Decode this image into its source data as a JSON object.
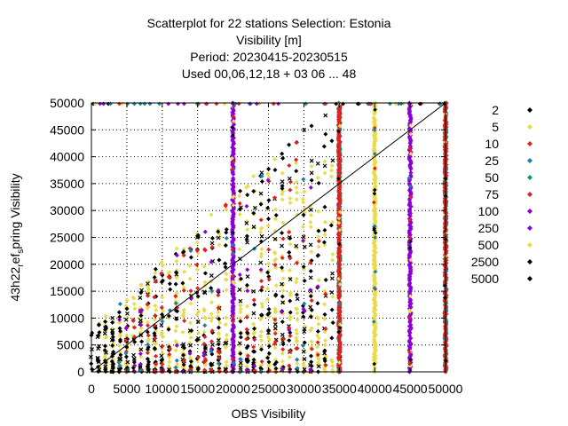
{
  "chart_data": {
    "type": "scatter",
    "title_lines": [
      "Scatterplot for   22 stations Selection: Estonia",
      "Visibility [m]",
      "Period: 20230415-20230515",
      "Used  00,06,12,18  + 03 06 ... 48"
    ],
    "xlabel": "OBS Visibility",
    "ylabel": "43h22 ref spring Visibility",
    "ylabel_parts": {
      "prefix": "43h22",
      "sub1": "r",
      "mid": "ef",
      "sub2": "s",
      "suffix": "pring Visibility"
    },
    "xlim": [
      0,
      50000
    ],
    "ylim": [
      0,
      50000
    ],
    "xticks": [
      0,
      5000,
      10000,
      15000,
      20000,
      25000,
      30000,
      35000,
      40000,
      45000,
      50000
    ],
    "yticks": [
      0,
      5000,
      10000,
      15000,
      20000,
      25000,
      30000,
      35000,
      40000,
      45000,
      50000
    ],
    "grid": true,
    "diagonal": true,
    "legend_position": "right",
    "series": [
      {
        "name": "2",
        "color": "#000000"
      },
      {
        "name": "5",
        "color": "#e8dc4a"
      },
      {
        "name": "10",
        "color": "#e02020"
      },
      {
        "name": "25",
        "color": "#1a7fb0"
      },
      {
        "name": "50",
        "color": "#0a9a7a"
      },
      {
        "name": "75",
        "color": "#e02020"
      },
      {
        "name": "100",
        "color": "#8a00d4"
      },
      {
        "name": "250",
        "color": "#8a00d4"
      },
      {
        "name": "500",
        "color": "#e8dc4a"
      },
      {
        "name": "2500",
        "color": "#000000"
      },
      {
        "name": "5000",
        "color": "#000000"
      }
    ],
    "column_stripes": [
      {
        "x": 20000,
        "series": "250",
        "color": "#8a00d4",
        "y_range": [
          0,
          50000
        ]
      },
      {
        "x": 35000,
        "series": "50",
        "color": "#0a9a7a",
        "y_range": [
          0,
          50000
        ]
      },
      {
        "x": 35000,
        "series": "10",
        "color": "#e02020",
        "y_range": [
          0,
          50000
        ]
      },
      {
        "x": 40000,
        "series": "500",
        "color": "#e8dc4a",
        "y_range": [
          0,
          50000
        ]
      },
      {
        "x": 45000,
        "series": "100",
        "color": "#8a00d4",
        "y_range": [
          0,
          50000
        ]
      },
      {
        "x": 50000,
        "series": "50",
        "color": "#0a9a7a",
        "y_range": [
          0,
          50000
        ]
      },
      {
        "x": 50000,
        "series": "10",
        "color": "#e02020",
        "y_range": [
          0,
          50000
        ]
      }
    ],
    "scatter_clusters": [
      {
        "series": "5",
        "color": "#e8dc4a",
        "x_range": [
          1000,
          34000
        ],
        "y_range": [
          0,
          40000
        ],
        "count": 700
      },
      {
        "series": "2",
        "color": "#000000",
        "x_range": [
          0,
          34000
        ],
        "y_range": [
          0,
          49000
        ],
        "count": 500
      },
      {
        "series": "10",
        "color": "#e02020",
        "x_range": [
          5000,
          33000
        ],
        "y_range": [
          0,
          45000
        ],
        "count": 140
      },
      {
        "series": "100",
        "color": "#8a00d4",
        "x_range": [
          3000,
          32000
        ],
        "y_range": [
          0,
          40000
        ],
        "count": 40
      },
      {
        "series": "25",
        "color": "#1a7fb0",
        "x_range": [
          3000,
          32000
        ],
        "y_range": [
          0,
          40000
        ],
        "count": 30
      }
    ],
    "top_row_points": {
      "y": 50000,
      "x_range": [
        0,
        50000
      ],
      "count": 60
    }
  }
}
